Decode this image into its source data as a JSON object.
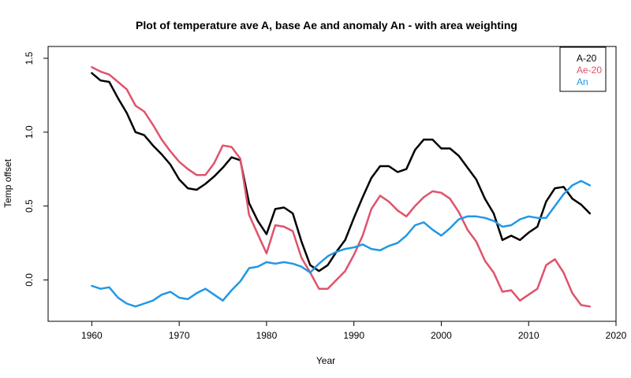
{
  "chart_data": {
    "type": "line",
    "title": "Plot of temperature ave A, base Ae and anomaly An - with area weighting",
    "xlabel": "Year",
    "ylabel": "Temp offset",
    "xlim": [
      1955,
      2020
    ],
    "ylim": [
      -0.28,
      1.58
    ],
    "xticks": [
      1960,
      1970,
      1980,
      1990,
      2000,
      2010,
      2020
    ],
    "yticks": [
      0.0,
      0.5,
      1.0,
      1.5
    ],
    "ytick_labels": [
      "0.0",
      "0.5",
      "1.0",
      "1.5"
    ],
    "legend_position": "top-right",
    "x": [
      1960,
      1961,
      1962,
      1963,
      1964,
      1965,
      1966,
      1967,
      1968,
      1969,
      1970,
      1971,
      1972,
      1973,
      1974,
      1975,
      1976,
      1977,
      1978,
      1979,
      1980,
      1981,
      1982,
      1983,
      1984,
      1985,
      1986,
      1987,
      1988,
      1989,
      1990,
      1991,
      1992,
      1993,
      1994,
      1995,
      1996,
      1997,
      1998,
      1999,
      2000,
      2001,
      2002,
      2003,
      2004,
      2005,
      2006,
      2007,
      2008,
      2009,
      2010,
      2011,
      2012,
      2013,
      2014,
      2015,
      2016,
      2017
    ],
    "series": [
      {
        "name": "A-20",
        "color": "#000000",
        "values": [
          1.4,
          1.35,
          1.34,
          1.23,
          1.13,
          1.0,
          0.98,
          0.91,
          0.85,
          0.78,
          0.68,
          0.62,
          0.61,
          0.65,
          0.7,
          0.76,
          0.83,
          0.81,
          0.52,
          0.4,
          0.31,
          0.48,
          0.49,
          0.45,
          0.26,
          0.1,
          0.06,
          0.1,
          0.19,
          0.27,
          0.42,
          0.56,
          0.69,
          0.77,
          0.77,
          0.73,
          0.75,
          0.88,
          0.95,
          0.95,
          0.89,
          0.89,
          0.84,
          0.76,
          0.68,
          0.55,
          0.45,
          0.27,
          0.3,
          0.27,
          0.32,
          0.36,
          0.53,
          0.62,
          0.63,
          0.55,
          0.51,
          0.45
        ]
      },
      {
        "name": "Ae-20",
        "color": "#df536b",
        "values": [
          1.44,
          1.41,
          1.39,
          1.34,
          1.29,
          1.18,
          1.14,
          1.05,
          0.95,
          0.87,
          0.8,
          0.75,
          0.71,
          0.71,
          0.79,
          0.91,
          0.9,
          0.82,
          0.44,
          0.31,
          0.18,
          0.37,
          0.36,
          0.33,
          0.15,
          0.05,
          -0.06,
          -0.06,
          0.0,
          0.06,
          0.17,
          0.3,
          0.48,
          0.57,
          0.53,
          0.47,
          0.43,
          0.5,
          0.56,
          0.6,
          0.59,
          0.55,
          0.46,
          0.34,
          0.26,
          0.13,
          0.05,
          -0.08,
          -0.07,
          -0.14,
          -0.1,
          -0.06,
          0.1,
          0.14,
          0.05,
          -0.09,
          -0.17,
          -0.18
        ]
      },
      {
        "name": "An",
        "color": "#2297e6",
        "values": [
          -0.04,
          -0.06,
          -0.05,
          -0.12,
          -0.16,
          -0.18,
          -0.16,
          -0.14,
          -0.1,
          -0.08,
          -0.12,
          -0.13,
          -0.09,
          -0.06,
          -0.1,
          -0.14,
          -0.07,
          -0.01,
          0.08,
          0.09,
          0.12,
          0.11,
          0.12,
          0.11,
          0.09,
          0.05,
          0.11,
          0.16,
          0.19,
          0.21,
          0.22,
          0.24,
          0.21,
          0.2,
          0.23,
          0.25,
          0.3,
          0.37,
          0.39,
          0.34,
          0.3,
          0.35,
          0.41,
          0.43,
          0.43,
          0.42,
          0.4,
          0.36,
          0.37,
          0.41,
          0.43,
          0.42,
          0.42,
          0.5,
          0.58,
          0.64,
          0.67,
          0.64
        ]
      }
    ]
  }
}
